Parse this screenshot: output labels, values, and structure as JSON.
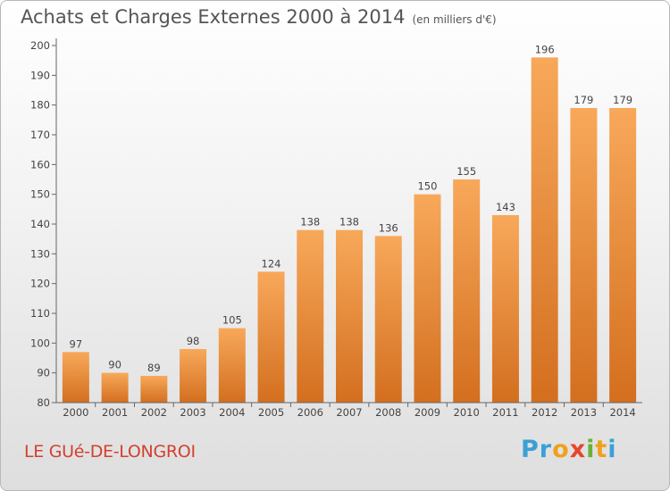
{
  "header": {
    "title": "Achats et Charges Externes 2000 à 2014",
    "subtitle": "(en milliers d'€)"
  },
  "footer": {
    "location": "LE GUé-DE-LONGROI",
    "brand": "Proxiti"
  },
  "colors": {
    "bar_light": "#f8a85a",
    "bar_dark": "#d36f1f",
    "axis": "#666666",
    "text": "#444444"
  },
  "chart_data": {
    "type": "bar",
    "title": "Achats et Charges Externes 2000 à 2014",
    "subtitle": "(en milliers d'€)",
    "categories": [
      "2000",
      "2001",
      "2002",
      "2003",
      "2004",
      "2005",
      "2006",
      "2007",
      "2008",
      "2009",
      "2010",
      "2011",
      "2012",
      "2013",
      "2014"
    ],
    "values": [
      97,
      90,
      89,
      98,
      105,
      124,
      138,
      138,
      136,
      150,
      155,
      143,
      196,
      179,
      179
    ],
    "ylim": [
      80,
      200
    ],
    "yticks": [
      80,
      90,
      100,
      110,
      120,
      130,
      140,
      150,
      160,
      170,
      180,
      190,
      200
    ],
    "grid": false,
    "legend": "none",
    "data_labels": true
  }
}
